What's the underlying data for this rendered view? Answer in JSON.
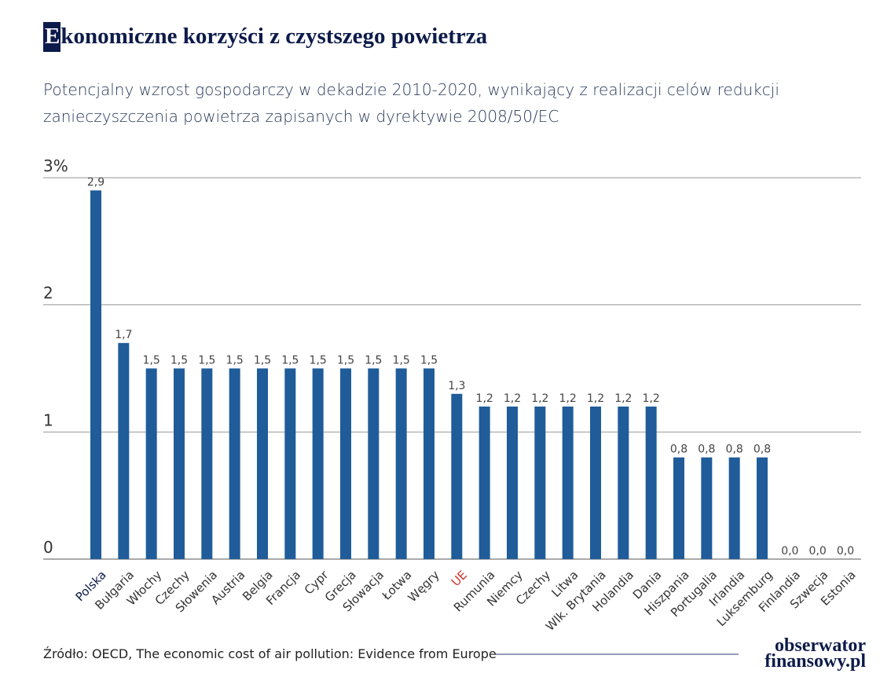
{
  "chart_data": {
    "type": "bar",
    "title": "Ekonomiczne korzyści z czystszego powietrza",
    "subtitle": [
      "Potencjalny wzrost gospodarczy w dekadzie 2010-2020, wynikający z realizacji celów redukcji",
      "zanieczyszczenia powietrza zapisanych w dyrektywie 2008/50/EC"
    ],
    "categories": [
      "Polska",
      "Bułgaria",
      "Włochy",
      "Czechy",
      "Słowenia",
      "Austria",
      "Belgia",
      "Francja",
      "Cypr",
      "Grecja",
      "Słowacja",
      "Łotwa",
      "Węgry",
      "UE",
      "Rumunia",
      "Niemcy",
      "Czechy",
      "Litwa",
      "Wlk. Brytania",
      "Holandia",
      "Dania",
      "Hiszpania",
      "Portugalia",
      "Irlandia",
      "Luksemburg",
      "Finlandia",
      "Szwecja",
      "Estonia"
    ],
    "category_colors": [
      "#0d1b4a",
      "#333333",
      "#333333",
      "#333333",
      "#333333",
      "#333333",
      "#333333",
      "#333333",
      "#333333",
      "#333333",
      "#333333",
      "#333333",
      "#333333",
      "#d0342c",
      "#333333",
      "#333333",
      "#333333",
      "#333333",
      "#333333",
      "#333333",
      "#333333",
      "#333333",
      "#333333",
      "#333333",
      "#333333",
      "#333333",
      "#333333",
      "#333333"
    ],
    "values": [
      2.9,
      1.7,
      1.5,
      1.5,
      1.5,
      1.5,
      1.5,
      1.5,
      1.5,
      1.5,
      1.5,
      1.5,
      1.5,
      1.3,
      1.2,
      1.2,
      1.2,
      1.2,
      1.2,
      1.2,
      1.2,
      0.8,
      0.8,
      0.8,
      0.8,
      0,
      0,
      0
    ],
    "value_labels": [
      "2,9",
      "1,7",
      "1,5",
      "1,5",
      "1,5",
      "1,5",
      "1,5",
      "1,5",
      "1,5",
      "1,5",
      "1,5",
      "1,5",
      "1,5",
      "1,3",
      "1,2",
      "1,2",
      "1,2",
      "1,2",
      "1,2",
      "1,2",
      "1,2",
      "0,8",
      "0,8",
      "0,8",
      "0,8",
      "0,0",
      "0,0",
      "0,0"
    ],
    "color": "#1f5c99",
    "ylim": [
      0,
      3
    ],
    "yticks": [
      0,
      1,
      2,
      {
        "value": 3,
        "label": "3%"
      }
    ],
    "grid": true,
    "source": "Źródło: OECD, The economic cost of air pollution: Evidence from Europe"
  },
  "logo": [
    "obserwator",
    "finansowy.pl"
  ]
}
